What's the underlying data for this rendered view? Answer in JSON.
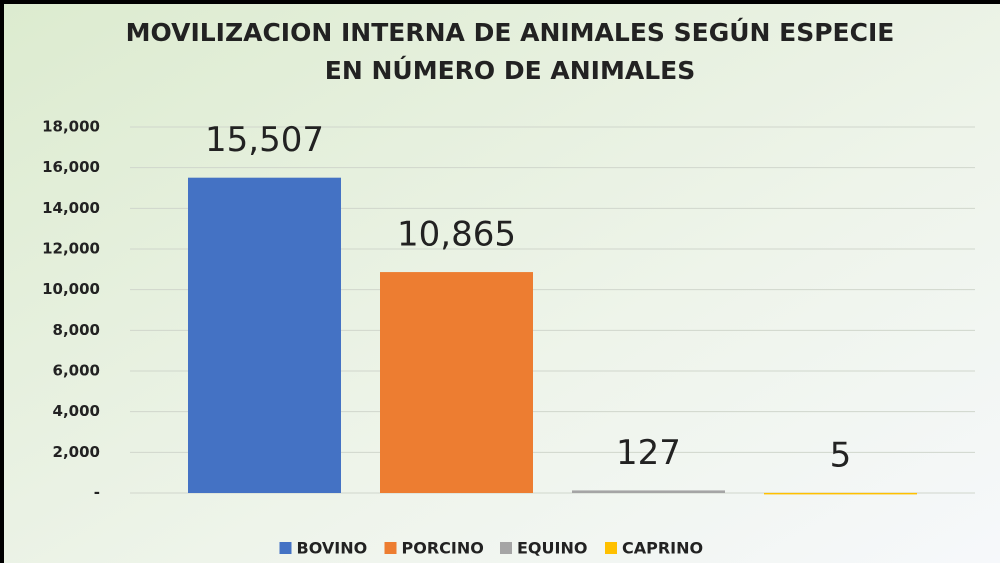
{
  "chart_data": {
    "type": "bar",
    "title": [
      "MOVILIZACION INTERNA DE ANIMALES SEGÚN ESPECIE",
      "EN NÚMERO DE ANIMALES"
    ],
    "categories": [
      null
    ],
    "series": [
      {
        "name": "BOVINO",
        "color": "#4472c4",
        "values": [
          15507
        ],
        "value_labels": [
          "15,507"
        ]
      },
      {
        "name": "PORCINO",
        "color": "#ed7d31",
        "values": [
          10865
        ],
        "value_labels": [
          "10,865"
        ]
      },
      {
        "name": "EQUINO",
        "color": "#a5a5a5",
        "values": [
          127
        ]
      },
      {
        "name": "CAPRINO",
        "color": "#ffc000",
        "values": [
          5
        ]
      }
    ],
    "ylim": [
      0,
      18000
    ],
    "yticks": [
      {
        "value": 0,
        "label": "-"
      },
      {
        "value": 2000,
        "label": "2,000"
      },
      {
        "value": 4000,
        "label": "4,000"
      },
      {
        "value": 6000,
        "label": "6,000"
      },
      {
        "value": 8000,
        "label": "8,000"
      },
      {
        "value": 10000,
        "label": "10,000"
      },
      {
        "value": 12000,
        "label": "12,000"
      },
      {
        "value": 14000,
        "label": "14,000"
      },
      {
        "value": 16000,
        "label": "16,000"
      },
      {
        "value": 18000,
        "label": "18,000"
      }
    ],
    "grid": true,
    "legend": "bottom"
  }
}
